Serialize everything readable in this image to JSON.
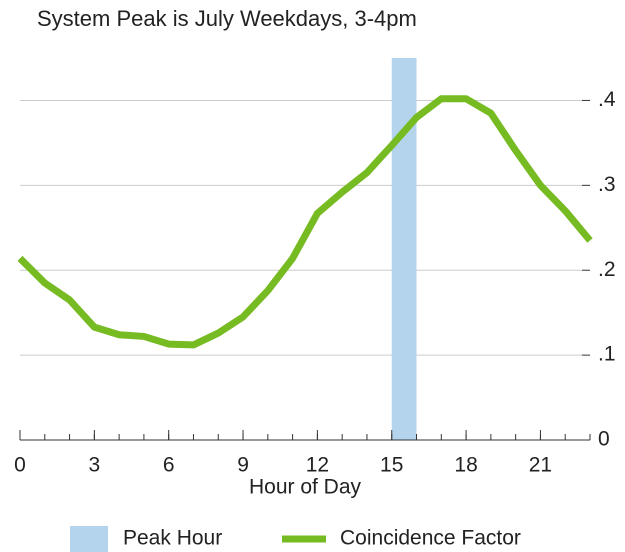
{
  "chart_data": {
    "type": "line",
    "title": "System Peak is July Weekdays, 3-4pm",
    "xlabel": "Hour of Day",
    "x": [
      0,
      1,
      2,
      3,
      4,
      5,
      6,
      7,
      8,
      9,
      10,
      11,
      12,
      13,
      14,
      15,
      16,
      17,
      18,
      19,
      20,
      21,
      22,
      23
    ],
    "series": [
      {
        "name": "Coincidence Factor",
        "color": "#77bb22",
        "values": [
          0.214,
          0.185,
          0.165,
          0.133,
          0.124,
          0.122,
          0.113,
          0.112,
          0.126,
          0.145,
          0.176,
          0.214,
          0.267,
          0.292,
          0.315,
          0.347,
          0.38,
          0.402,
          0.402,
          0.385,
          0.341,
          0.3,
          0.27,
          0.235
        ]
      }
    ],
    "highlight": {
      "name": "Peak Hour",
      "color": "#b4d4ee",
      "x": [
        15,
        16
      ]
    },
    "xlim": [
      0,
      23
    ],
    "xticks": [
      0,
      3,
      6,
      9,
      12,
      15,
      18,
      21
    ],
    "ylim": [
      0,
      0.45
    ],
    "yticks": [
      0,
      {
        "value": 0.1,
        "label": ".1"
      },
      {
        "value": 0.2,
        "label": ".2"
      },
      {
        "value": 0.3,
        "label": ".3"
      },
      {
        "value": 0.4,
        "label": ".4"
      }
    ],
    "grid": true
  }
}
